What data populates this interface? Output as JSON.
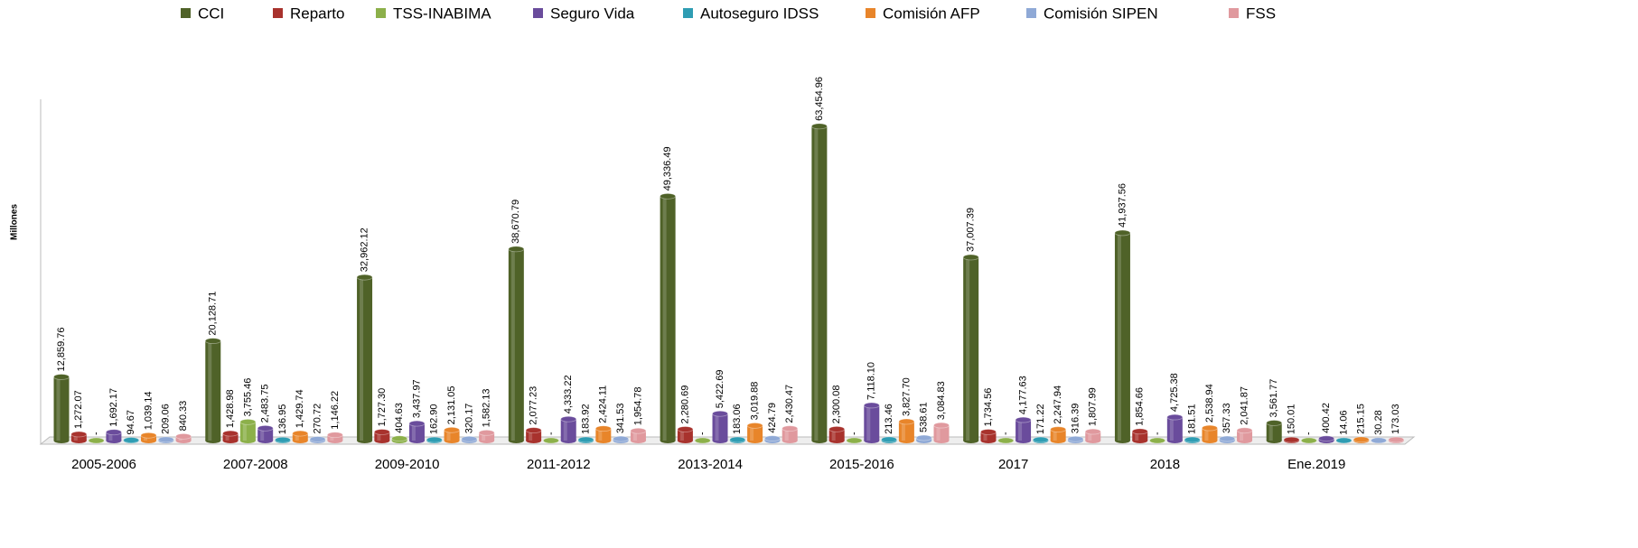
{
  "chart_data": {
    "type": "bar",
    "y_label": "Millones",
    "categories": [
      "2005-2006",
      "2007-2008",
      "2009-2010",
      "2011-2012",
      "2013-2014",
      "2015-2016",
      "2017",
      "2018",
      "Ene.2019"
    ],
    "ylim": [
      0,
      70000
    ],
    "series": [
      {
        "name": "CCI",
        "color": "#4f6228",
        "values": [
          12859.76,
          20128.71,
          32962.12,
          38670.79,
          49336.49,
          63454.96,
          37007.39,
          41937.56,
          3561.77
        ],
        "value_labels": [
          "12,859.76",
          "20,128.71",
          "32,962.12",
          "38,670.79",
          "49,336.49",
          "63,454.96",
          "37,007.39",
          "41,937.56",
          "3,561.77"
        ]
      },
      {
        "name": "Reparto",
        "color": "#a8322d",
        "values": [
          1272.07,
          1428.98,
          1727.3,
          2077.23,
          2280.69,
          2300.08,
          1734.56,
          1854.66,
          150.01
        ],
        "value_labels": [
          "1,272.07",
          "1,428.98",
          "1,727.30",
          "2,077.23",
          "2,280.69",
          "2,300.08",
          "1,734.56",
          "1,854.66",
          "150.01"
        ]
      },
      {
        "name": "TSS-INABIMA",
        "color": "#8cb04a",
        "values": [
          0,
          3755.46,
          404.63,
          0,
          0,
          0,
          0,
          0,
          0
        ],
        "value_labels": [
          "-",
          "3,755.46",
          "404.63",
          "-",
          "-",
          "-",
          "-",
          "-",
          "-"
        ]
      },
      {
        "name": "Seguro Vida",
        "color": "#6a4c9c",
        "values": [
          1692.17,
          2483.75,
          3437.97,
          4333.22,
          5422.69,
          7118.1,
          4177.63,
          4725.38,
          400.42
        ],
        "value_labels": [
          "1,692.17",
          "2,483.75",
          "3,437.97",
          "4,333.22",
          "5,422.69",
          "7,118.10",
          "4,177.63",
          "4,725.38",
          "400.42"
        ]
      },
      {
        "name": "Autoseguro IDSS",
        "color": "#2f9db3",
        "values": [
          94.67,
          136.95,
          162.9,
          183.92,
          183.06,
          213.46,
          171.22,
          181.51,
          14.06
        ],
        "value_labels": [
          "94.67",
          "136.95",
          "162.90",
          "183.92",
          "183.06",
          "213.46",
          "171.22",
          "181.51",
          "14.06"
        ]
      },
      {
        "name": "Comisión AFP",
        "color": "#e8852a",
        "values": [
          1039.14,
          1429.74,
          2131.05,
          2424.11,
          3019.88,
          3827.7,
          2247.94,
          2538.94,
          215.15
        ],
        "value_labels": [
          "1,039.14",
          "1,429.74",
          "2,131.05",
          "2,424.11",
          "3,019.88",
          "3,827.70",
          "2,247.94",
          "2,538.94",
          "215.15"
        ]
      },
      {
        "name": "Comisión SIPEN",
        "color": "#8fa9d6",
        "values": [
          209.06,
          270.72,
          320.17,
          341.53,
          424.79,
          538.61,
          316.39,
          357.33,
          30.28
        ],
        "value_labels": [
          "209.06",
          "270.72",
          "320.17",
          "341.53",
          "424.79",
          "538.61",
          "316.39",
          "357.33",
          "30.28"
        ]
      },
      {
        "name": "FSS",
        "color": "#e0999e",
        "values": [
          840.33,
          1146.22,
          1582.13,
          1954.78,
          2430.47,
          3084.83,
          1807.99,
          2041.87,
          173.03
        ],
        "value_labels": [
          "840.33",
          "1,146.22",
          "1,582.13",
          "1,954.78",
          "2,430.47",
          "3,084.83",
          "1,807.99",
          "2,041.87",
          "173.03"
        ]
      }
    ]
  }
}
